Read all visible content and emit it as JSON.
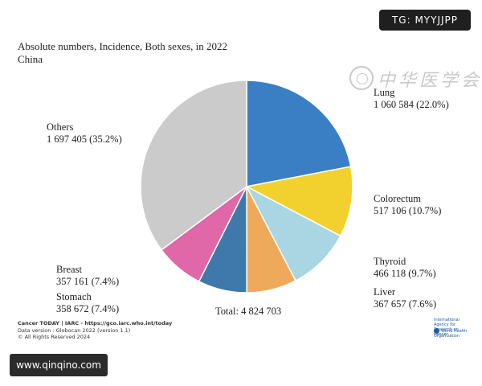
{
  "title": "Absolute numbers, Incidence, Both sexes, in 2022",
  "subtitle": "China",
  "tg_badge": "TG: MYYJJPP",
  "url_badge": "www.qinqino.com",
  "watermark_text": "中华医学会",
  "total_label": "Total: 4 824 703",
  "footer": {
    "line1": "Cancer TODAY | IARC - https://gco.iarc.who.int/today",
    "line2": "Data version : Globocan 2022 (version 1.1)",
    "line3": "© All Rights Reserved 2024"
  },
  "logos": {
    "iarc": "International Agency for Research on Cancer",
    "who": "World Health Organization"
  },
  "chart_data": {
    "type": "pie",
    "title": "Absolute numbers, Incidence, Both sexes, in 2022",
    "subtitle": "China",
    "total": 4824703,
    "slices": [
      {
        "name": "Lung",
        "value": 1060584,
        "pct": "22.0%",
        "value_label": "1 060 584",
        "color": "#3a7fc4"
      },
      {
        "name": "Colorectum",
        "value": 517106,
        "pct": "10.7%",
        "value_label": "517 106",
        "color": "#f2d12e"
      },
      {
        "name": "Thyroid",
        "value": 466118,
        "pct": "9.7%",
        "value_label": "466 118",
        "color": "#a9d6e2"
      },
      {
        "name": "Liver",
        "value": 367657,
        "pct": "7.6%",
        "value_label": "367 657",
        "color": "#eeaa5a"
      },
      {
        "name": "Stomach",
        "value": 358672,
        "pct": "7.4%",
        "value_label": "358 672",
        "color": "#3f78ab"
      },
      {
        "name": "Breast",
        "value": 357161,
        "pct": "7.4%",
        "value_label": "357 161",
        "color": "#e067a8"
      },
      {
        "name": "Others",
        "value": 1697405,
        "pct": "35.2%",
        "value_label": "1 697 405",
        "color": "#cbcbcb"
      }
    ]
  }
}
